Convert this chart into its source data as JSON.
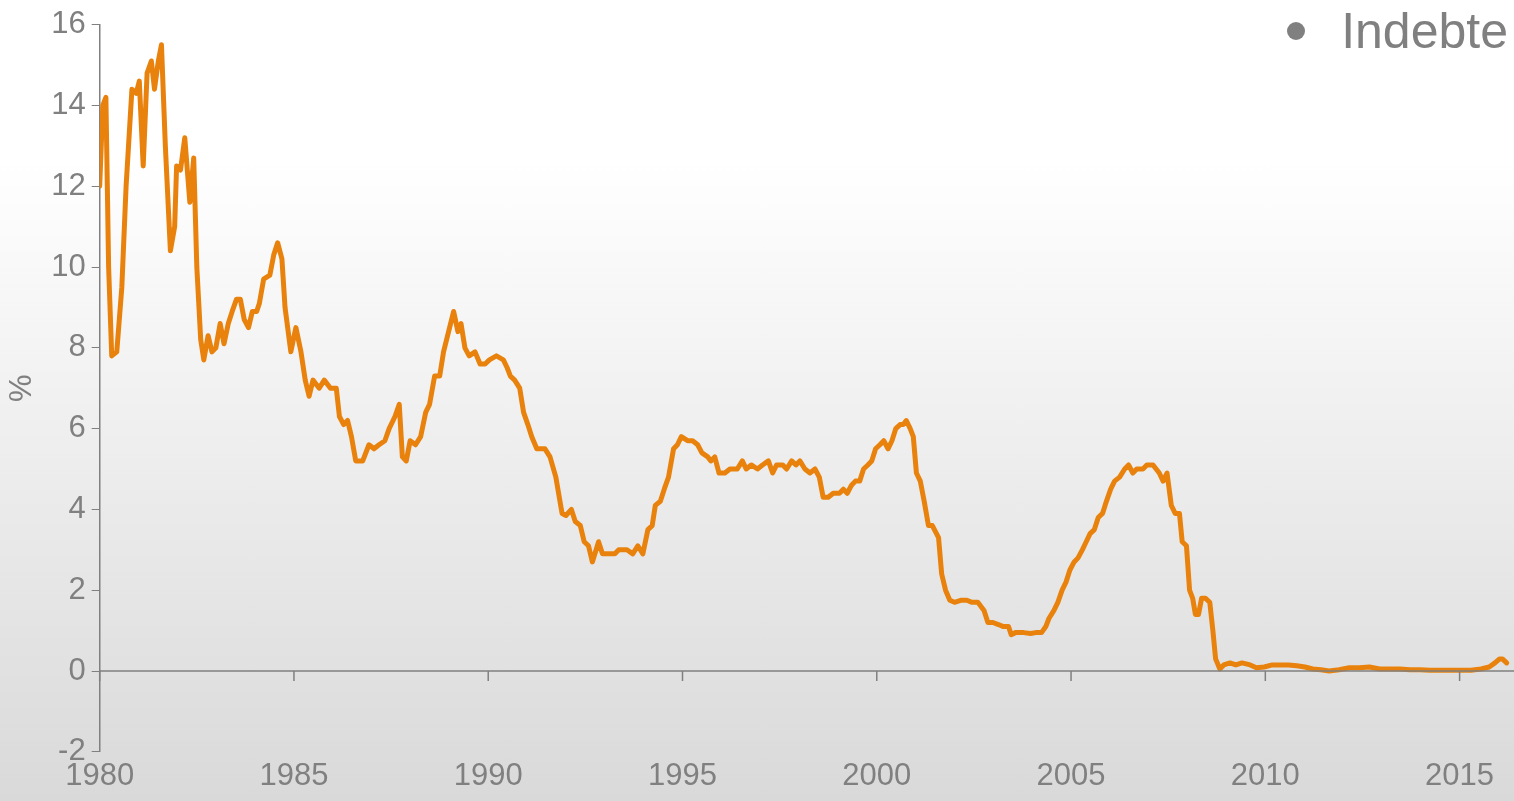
{
  "chart_data": {
    "type": "line",
    "ylabel": "%",
    "annotations": [
      "Indebte"
    ],
    "xlim": [
      1980,
      2016.4
    ],
    "xticks": [
      1980,
      1985,
      1990,
      1995,
      2000,
      2005,
      2010,
      2015
    ],
    "ylim": [
      -2,
      16
    ],
    "yticks": [
      -2,
      0,
      2,
      4,
      6,
      8,
      10,
      12,
      14,
      16
    ],
    "grid": false,
    "legend": false,
    "marker": "none",
    "line_style": "solid",
    "ref_lines": [
      {
        "axis": "y",
        "value": 0,
        "color": "#808080"
      }
    ],
    "series": [
      {
        "color": "#e8820c",
        "x": [
          1980.0,
          1980.08,
          1980.16,
          1980.23,
          1980.31,
          1980.44,
          1980.57,
          1980.68,
          1980.83,
          1980.94,
          1981.02,
          1981.12,
          1981.22,
          1981.33,
          1981.41,
          1981.51,
          1981.59,
          1981.69,
          1981.82,
          1981.93,
          1981.98,
          1982.08,
          1982.19,
          1982.32,
          1982.42,
          1982.5,
          1982.6,
          1982.68,
          1982.79,
          1982.89,
          1982.99,
          1983.1,
          1983.2,
          1983.31,
          1983.41,
          1983.52,
          1983.62,
          1983.72,
          1983.83,
          1983.93,
          1984.04,
          1984.11,
          1984.22,
          1984.38,
          1984.48,
          1984.58,
          1984.69,
          1984.77,
          1984.92,
          1985.05,
          1985.18,
          1985.29,
          1985.39,
          1985.49,
          1985.65,
          1985.78,
          1985.94,
          1986.09,
          1986.17,
          1986.28,
          1986.38,
          1986.48,
          1986.59,
          1986.77,
          1986.93,
          1987.06,
          1987.19,
          1987.34,
          1987.45,
          1987.6,
          1987.71,
          1987.79,
          1987.89,
          1987.99,
          1988.13,
          1988.26,
          1988.39,
          1988.49,
          1988.62,
          1988.75,
          1988.85,
          1988.98,
          1989.11,
          1989.22,
          1989.3,
          1989.4,
          1989.51,
          1989.66,
          1989.79,
          1989.92,
          1990.03,
          1990.21,
          1990.39,
          1990.49,
          1990.57,
          1990.68,
          1990.81,
          1990.91,
          1991.02,
          1991.12,
          1991.25,
          1991.46,
          1991.59,
          1991.74,
          1991.9,
          1992.0,
          1992.14,
          1992.24,
          1992.37,
          1992.47,
          1992.58,
          1992.68,
          1992.84,
          1992.94,
          1993.1,
          1993.26,
          1993.36,
          1993.57,
          1993.72,
          1993.85,
          1993.98,
          1994.11,
          1994.22,
          1994.3,
          1994.43,
          1994.53,
          1994.64,
          1994.77,
          1994.87,
          1994.97,
          1995.13,
          1995.26,
          1995.39,
          1995.5,
          1995.65,
          1995.73,
          1995.83,
          1995.94,
          1996.09,
          1996.22,
          1996.41,
          1996.54,
          1996.64,
          1996.77,
          1996.93,
          1997.06,
          1997.21,
          1997.32,
          1997.42,
          1997.58,
          1997.68,
          1997.81,
          1997.92,
          1998.02,
          1998.15,
          1998.28,
          1998.41,
          1998.52,
          1998.62,
          1998.75,
          1998.88,
          1999.04,
          1999.14,
          1999.24,
          1999.35,
          1999.45,
          1999.56,
          1999.66,
          1999.77,
          1999.87,
          1999.97,
          2000.08,
          2000.18,
          2000.29,
          2000.39,
          2000.49,
          2000.6,
          2000.68,
          2000.76,
          2000.86,
          2000.94,
          2001.02,
          2001.12,
          2001.22,
          2001.33,
          2001.43,
          2001.59,
          2001.67,
          2001.77,
          2001.88,
          2002.0,
          2002.16,
          2002.32,
          2002.45,
          2002.6,
          2002.76,
          2002.86,
          2002.99,
          2003.13,
          2003.26,
          2003.39,
          2003.46,
          2003.57,
          2003.78,
          2003.96,
          2004.09,
          2004.24,
          2004.35,
          2004.43,
          2004.56,
          2004.66,
          2004.77,
          2004.87,
          2004.97,
          2005.08,
          2005.18,
          2005.29,
          2005.39,
          2005.49,
          2005.6,
          2005.7,
          2005.81,
          2005.91,
          2006.02,
          2006.12,
          2006.25,
          2006.38,
          2006.48,
          2006.59,
          2006.69,
          2006.85,
          2006.95,
          2007.11,
          2007.27,
          2007.37,
          2007.47,
          2007.58,
          2007.68,
          2007.79,
          2007.86,
          2007.97,
          2008.05,
          2008.13,
          2008.2,
          2008.28,
          2008.36,
          2008.46,
          2008.57,
          2008.65,
          2008.72,
          2008.83,
          2008.93,
          2009.09,
          2009.24,
          2009.4,
          2009.61,
          2009.77,
          2009.97,
          2010.18,
          2010.39,
          2010.6,
          2010.81,
          2011.02,
          2011.22,
          2011.43,
          2011.64,
          2011.9,
          2012.16,
          2012.42,
          2012.68,
          2012.94,
          2013.2,
          2013.46,
          2013.72,
          2013.98,
          2014.24,
          2014.51,
          2014.77,
          2015.03,
          2015.29,
          2015.55,
          2015.76,
          2015.91,
          2016.03,
          2016.1,
          2016.21
        ],
        "values": [
          12.0,
          14.0,
          14.2,
          10.0,
          7.8,
          7.9,
          9.5,
          12.0,
          14.4,
          14.3,
          14.6,
          12.5,
          14.8,
          15.1,
          14.4,
          15.1,
          15.5,
          13.0,
          10.4,
          11.0,
          12.5,
          12.4,
          13.2,
          11.6,
          12.7,
          10.0,
          8.2,
          7.7,
          8.3,
          7.9,
          8.0,
          8.6,
          8.1,
          8.6,
          8.9,
          9.2,
          9.2,
          8.7,
          8.5,
          8.9,
          8.9,
          9.1,
          9.7,
          9.8,
          10.3,
          10.6,
          10.2,
          9.0,
          7.9,
          8.5,
          7.9,
          7.2,
          6.8,
          7.2,
          7.0,
          7.2,
          7.0,
          7.0,
          6.3,
          6.1,
          6.2,
          5.8,
          5.2,
          5.2,
          5.6,
          5.5,
          5.6,
          5.7,
          6.0,
          6.3,
          6.6,
          5.3,
          5.2,
          5.7,
          5.6,
          5.8,
          6.4,
          6.6,
          7.3,
          7.3,
          7.9,
          8.4,
          8.9,
          8.4,
          8.6,
          8.0,
          7.8,
          7.9,
          7.6,
          7.6,
          7.7,
          7.8,
          7.7,
          7.5,
          7.3,
          7.2,
          7.0,
          6.4,
          6.1,
          5.8,
          5.5,
          5.5,
          5.3,
          4.8,
          3.9,
          3.85,
          4.0,
          3.7,
          3.6,
          3.2,
          3.1,
          2.7,
          3.2,
          2.9,
          2.9,
          2.9,
          3.0,
          3.0,
          2.9,
          3.1,
          2.9,
          3.5,
          3.6,
          4.1,
          4.2,
          4.5,
          4.8,
          5.5,
          5.6,
          5.8,
          5.7,
          5.7,
          5.6,
          5.4,
          5.3,
          5.2,
          5.3,
          4.9,
          4.9,
          5.0,
          5.0,
          5.2,
          5.0,
          5.1,
          5.0,
          5.1,
          5.2,
          4.9,
          5.1,
          5.1,
          5.0,
          5.2,
          5.1,
          5.2,
          5.0,
          4.9,
          5.0,
          4.8,
          4.3,
          4.3,
          4.4,
          4.4,
          4.5,
          4.4,
          4.6,
          4.7,
          4.7,
          5.0,
          5.1,
          5.2,
          5.5,
          5.6,
          5.7,
          5.5,
          5.7,
          6.0,
          6.1,
          6.1,
          6.2,
          6.0,
          5.8,
          4.9,
          4.7,
          4.2,
          3.6,
          3.6,
          3.3,
          2.4,
          2.0,
          1.75,
          1.7,
          1.75,
          1.75,
          1.7,
          1.7,
          1.5,
          1.2,
          1.2,
          1.15,
          1.1,
          1.1,
          0.9,
          0.95,
          0.95,
          0.93,
          0.95,
          0.95,
          1.1,
          1.3,
          1.5,
          1.7,
          2.0,
          2.2,
          2.5,
          2.7,
          2.8,
          3.0,
          3.2,
          3.4,
          3.5,
          3.8,
          3.9,
          4.2,
          4.5,
          4.7,
          4.8,
          5.0,
          5.1,
          4.9,
          5.0,
          5.0,
          5.1,
          5.1,
          4.9,
          4.7,
          4.9,
          4.1,
          3.9,
          3.9,
          3.2,
          3.1,
          2.0,
          1.8,
          1.4,
          1.4,
          1.8,
          1.8,
          1.7,
          1.0,
          0.3,
          0.05,
          0.15,
          0.2,
          0.15,
          0.2,
          0.15,
          0.08,
          0.1,
          0.15,
          0.15,
          0.15,
          0.13,
          0.1,
          0.05,
          0.03,
          0.0,
          0.03,
          0.08,
          0.08,
          0.1,
          0.05,
          0.05,
          0.05,
          0.03,
          0.03,
          0.02,
          0.02,
          0.02,
          0.02,
          0.02,
          0.05,
          0.1,
          0.2,
          0.3,
          0.3,
          0.2
        ]
      }
    ]
  }
}
